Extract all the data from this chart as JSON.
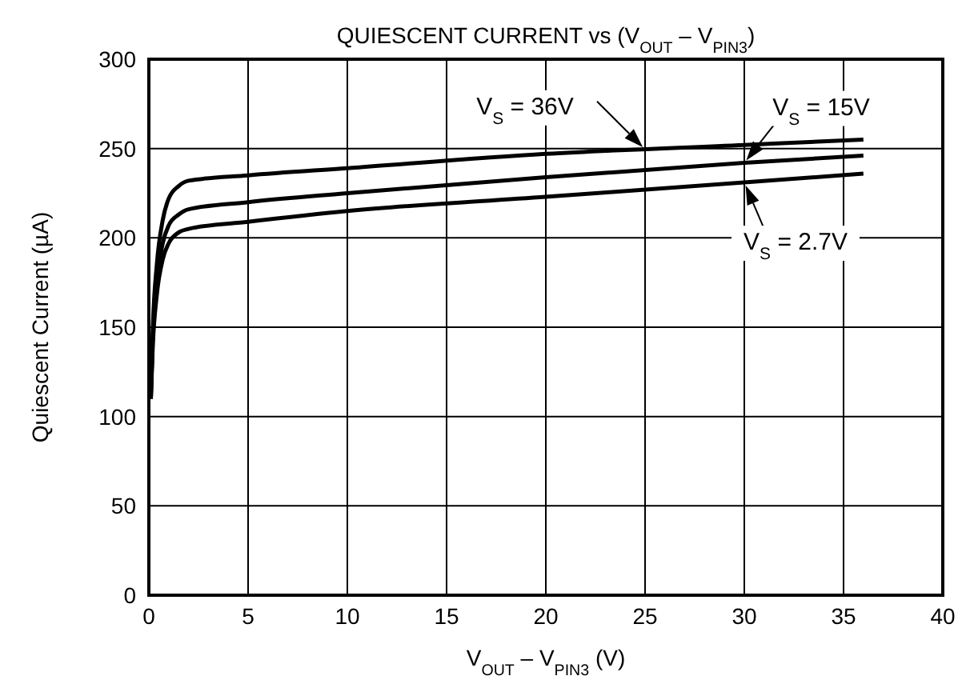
{
  "chart_data": {
    "type": "line",
    "title": "QUIESCENT CURRENT vs (V$_{OUT}$ – V$_{PIN3}$)",
    "xlabel": "V$_{OUT}$ – V$_{PIN3}$ (V)",
    "ylabel": "Quiescent Current (µA)",
    "x": [
      0.1,
      0.2,
      0.4,
      0.7,
      1,
      1.5,
      2,
      5,
      10,
      20,
      30,
      36
    ],
    "series": [
      {
        "name": "V$_{S}$ = 36V",
        "color": "#000000",
        "values": [
          110,
          150,
          185,
          210,
          222,
          229,
          232,
          235,
          239,
          247,
          252,
          255
        ]
      },
      {
        "name": "V$_{S}$ = 15V",
        "color": "#000000",
        "values": [
          110,
          145,
          175,
          197,
          207,
          213,
          216,
          220,
          225,
          234,
          242,
          246
        ]
      },
      {
        "name": "V$_{S}$ = 2.7V",
        "color": "#000000",
        "values": [
          110,
          140,
          168,
          188,
          197,
          203,
          205,
          209,
          215,
          223,
          231,
          236
        ]
      }
    ],
    "xlim": [
      0,
      40
    ],
    "xticks": [
      0,
      5,
      10,
      15,
      20,
      25,
      30,
      35,
      40
    ],
    "ylim": [
      0,
      300
    ],
    "yticks": [
      0,
      50,
      100,
      150,
      200,
      250,
      300
    ],
    "grid": true,
    "marker": "none",
    "line_style": "solid"
  }
}
